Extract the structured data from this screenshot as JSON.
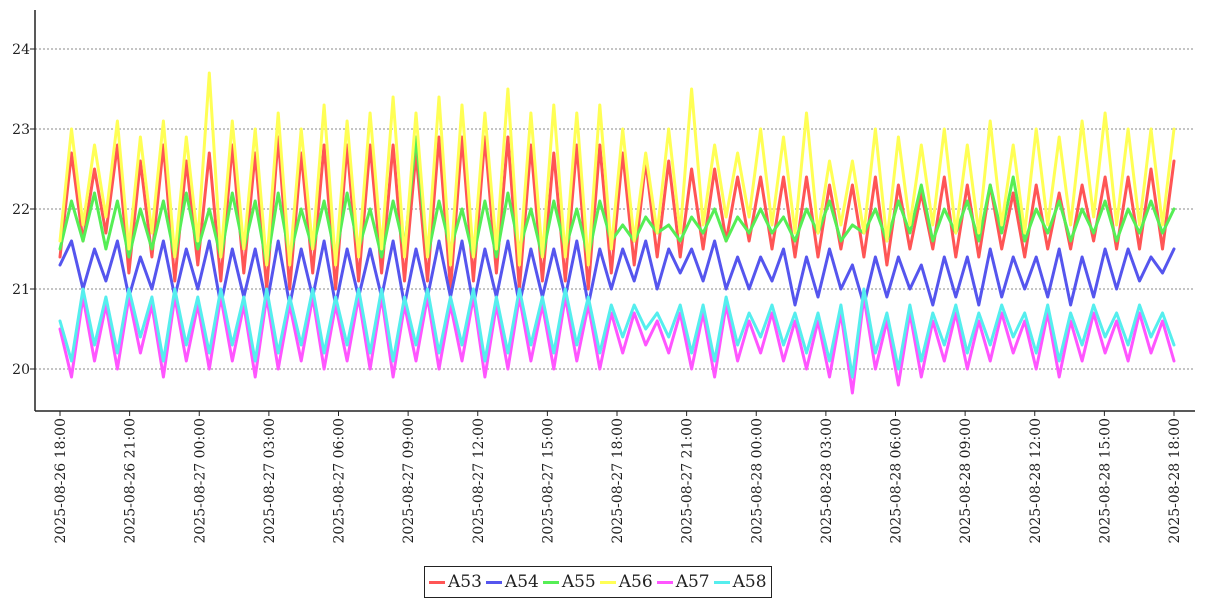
{
  "chart_data": {
    "type": "line",
    "title": "",
    "xlabel": "",
    "ylabel": "",
    "ylim": [
      19.5,
      24.5
    ],
    "y_ticks": [
      "20",
      "21",
      "22",
      "23",
      "24"
    ],
    "grid": "horizontal-dotted",
    "legend_position": "bottom-center",
    "x_ticks": [
      "2025-08-26 18:00",
      "2025-08-26 21:00",
      "2025-08-27 00:00",
      "2025-08-27 03:00",
      "2025-08-27 06:00",
      "2025-08-27 09:00",
      "2025-08-27 12:00",
      "2025-08-27 15:00",
      "2025-08-27 18:00",
      "2025-08-27 21:00",
      "2025-08-28 00:00",
      "2025-08-28 03:00",
      "2025-08-28 06:00",
      "2025-08-28 09:00",
      "2025-08-28 12:00",
      "2025-08-28 15:00",
      "2025-08-28 18:00"
    ],
    "x_hours_span": 48,
    "sample_step_hours": 0.25,
    "series": [
      {
        "name": "A53",
        "color": "#ff5555",
        "values": [
          21.4,
          22.7,
          21.6,
          22.5,
          21.7,
          22.8,
          21.2,
          22.6,
          21.4,
          22.8,
          21.1,
          22.6,
          21.3,
          22.7,
          21.1,
          22.8,
          21.2,
          22.7,
          21.0,
          22.9,
          21.0,
          22.7,
          21.2,
          22.8,
          21.0,
          22.8,
          21.1,
          22.8,
          21.2,
          22.8,
          21.1,
          22.7,
          21.1,
          22.9,
          21.0,
          22.9,
          21.1,
          22.9,
          21.2,
          22.9,
          21.0,
          22.8,
          21.1,
          22.7,
          21.1,
          22.8,
          21.0,
          22.8,
          21.2,
          22.7,
          21.3,
          22.6,
          21.4,
          22.6,
          21.4,
          22.5,
          21.5,
          22.5,
          21.6,
          22.4,
          21.6,
          22.4,
          21.5,
          22.4,
          21.4,
          22.4,
          21.4,
          22.3,
          21.5,
          22.3,
          21.4,
          22.4,
          21.3,
          22.3,
          21.5,
          22.2,
          21.5,
          22.4,
          21.4,
          22.3,
          21.4,
          22.3,
          21.5,
          22.2,
          21.4,
          22.3,
          21.5,
          22.2,
          21.5,
          22.3,
          21.6,
          22.4,
          21.5,
          22.4,
          21.5,
          22.5,
          21.5,
          22.6
        ]
      },
      {
        "name": "A54",
        "color": "#5555ee",
        "values": [
          21.3,
          21.6,
          21.0,
          21.5,
          21.1,
          21.6,
          20.9,
          21.4,
          21.0,
          21.6,
          20.9,
          21.5,
          21.0,
          21.6,
          20.8,
          21.5,
          20.9,
          21.5,
          20.8,
          21.6,
          20.8,
          21.5,
          20.9,
          21.6,
          20.8,
          21.5,
          20.9,
          21.5,
          20.9,
          21.6,
          20.8,
          21.5,
          20.9,
          21.6,
          20.9,
          21.6,
          20.8,
          21.5,
          20.9,
          21.6,
          20.8,
          21.5,
          20.9,
          21.5,
          20.9,
          21.6,
          20.8,
          21.5,
          21.0,
          21.5,
          21.1,
          21.6,
          21.0,
          21.5,
          21.2,
          21.5,
          21.1,
          21.6,
          21.0,
          21.4,
          21.0,
          21.4,
          21.1,
          21.5,
          20.8,
          21.4,
          20.9,
          21.5,
          21.0,
          21.3,
          20.8,
          21.4,
          20.9,
          21.4,
          21.0,
          21.3,
          20.8,
          21.4,
          20.9,
          21.4,
          20.8,
          21.5,
          20.9,
          21.4,
          21.0,
          21.4,
          20.9,
          21.5,
          20.8,
          21.4,
          20.9,
          21.5,
          21.0,
          21.5,
          21.1,
          21.4,
          21.2,
          21.5
        ]
      },
      {
        "name": "A55",
        "color": "#55ee55",
        "values": [
          21.5,
          22.1,
          21.6,
          22.2,
          21.5,
          22.1,
          21.4,
          22.0,
          21.5,
          22.1,
          21.4,
          22.2,
          21.5,
          22.0,
          21.4,
          22.2,
          21.5,
          22.1,
          21.3,
          22.2,
          21.4,
          22.0,
          21.5,
          22.1,
          21.4,
          22.2,
          21.5,
          22.0,
          21.4,
          22.1,
          21.5,
          22.9,
          21.4,
          22.1,
          21.5,
          22.0,
          21.4,
          22.1,
          21.4,
          22.2,
          21.5,
          22.0,
          21.4,
          22.1,
          21.5,
          22.0,
          21.4,
          22.1,
          21.6,
          21.8,
          21.6,
          21.9,
          21.7,
          21.8,
          21.6,
          21.9,
          21.7,
          22.0,
          21.6,
          21.9,
          21.7,
          22.0,
          21.7,
          21.9,
          21.6,
          22.0,
          21.7,
          22.1,
          21.6,
          21.8,
          21.7,
          22.0,
          21.6,
          22.1,
          21.7,
          22.3,
          21.6,
          22.0,
          21.7,
          22.1,
          21.6,
          22.3,
          21.7,
          22.4,
          21.6,
          22.0,
          21.7,
          22.1,
          21.6,
          22.0,
          21.7,
          22.1,
          21.6,
          22.0,
          21.7,
          22.1,
          21.7,
          22.0
        ]
      },
      {
        "name": "A56",
        "color": "#ffff55",
        "values": [
          21.6,
          23.0,
          21.8,
          22.8,
          21.9,
          23.1,
          21.5,
          22.9,
          21.7,
          23.1,
          21.4,
          22.9,
          21.6,
          23.7,
          21.4,
          23.1,
          21.5,
          23.0,
          21.3,
          23.2,
          21.3,
          23.0,
          21.5,
          23.3,
          21.3,
          23.1,
          21.4,
          23.2,
          21.5,
          23.4,
          21.4,
          23.2,
          21.4,
          23.4,
          21.3,
          23.3,
          21.4,
          23.2,
          21.5,
          23.5,
          21.3,
          23.2,
          21.4,
          23.3,
          21.4,
          23.2,
          21.3,
          23.3,
          21.5,
          23.0,
          21.6,
          22.7,
          21.7,
          23.0,
          21.7,
          23.5,
          21.8,
          22.8,
          21.9,
          22.7,
          21.9,
          23.0,
          21.8,
          22.9,
          21.7,
          23.2,
          21.7,
          22.6,
          21.8,
          22.6,
          21.7,
          23.0,
          21.6,
          22.9,
          21.8,
          22.8,
          21.8,
          23.0,
          21.7,
          22.8,
          21.7,
          23.1,
          21.8,
          22.8,
          21.7,
          23.0,
          21.8,
          22.9,
          21.8,
          23.1,
          21.9,
          23.2,
          21.8,
          23.0,
          21.8,
          23.0,
          21.8,
          23.0
        ]
      },
      {
        "name": "A57",
        "color": "#ff55ff",
        "values": [
          20.5,
          19.9,
          20.9,
          20.1,
          20.8,
          20.0,
          20.9,
          20.2,
          20.8,
          19.9,
          20.9,
          20.1,
          20.8,
          20.0,
          20.9,
          20.1,
          20.8,
          19.9,
          20.9,
          20.0,
          20.8,
          20.1,
          20.9,
          20.0,
          20.8,
          20.1,
          20.9,
          20.0,
          20.9,
          19.9,
          20.8,
          20.1,
          20.9,
          20.0,
          20.8,
          20.1,
          20.9,
          19.9,
          20.8,
          20.0,
          20.9,
          20.1,
          20.8,
          20.0,
          20.9,
          20.1,
          20.8,
          20.0,
          20.7,
          20.2,
          20.7,
          20.3,
          20.6,
          20.2,
          20.7,
          20.0,
          20.7,
          19.9,
          20.8,
          20.1,
          20.6,
          20.2,
          20.7,
          20.1,
          20.6,
          20.0,
          20.6,
          19.9,
          20.7,
          19.7,
          20.9,
          20.0,
          20.6,
          19.8,
          20.7,
          19.9,
          20.6,
          20.1,
          20.7,
          20.0,
          20.6,
          20.1,
          20.7,
          20.2,
          20.6,
          20.0,
          20.7,
          19.9,
          20.6,
          20.1,
          20.7,
          20.2,
          20.6,
          20.1,
          20.7,
          20.2,
          20.6,
          20.1
        ]
      },
      {
        "name": "A58",
        "color": "#55eeee",
        "values": [
          20.6,
          20.1,
          21.0,
          20.3,
          20.9,
          20.2,
          21.0,
          20.4,
          20.9,
          20.1,
          21.0,
          20.3,
          20.9,
          20.2,
          21.0,
          20.3,
          20.9,
          20.1,
          21.0,
          20.2,
          20.9,
          20.3,
          21.0,
          20.2,
          20.9,
          20.3,
          21.0,
          20.2,
          21.0,
          20.1,
          20.9,
          20.3,
          21.0,
          20.2,
          20.9,
          20.3,
          21.0,
          20.1,
          20.9,
          20.2,
          21.0,
          20.3,
          20.9,
          20.2,
          21.0,
          20.3,
          20.9,
          20.2,
          20.8,
          20.4,
          20.8,
          20.5,
          20.7,
          20.4,
          20.8,
          20.2,
          20.8,
          20.1,
          20.9,
          20.3,
          20.7,
          20.4,
          20.8,
          20.3,
          20.7,
          20.2,
          20.7,
          20.1,
          20.8,
          19.9,
          21.0,
          20.2,
          20.7,
          20.0,
          20.8,
          20.1,
          20.7,
          20.3,
          20.8,
          20.2,
          20.7,
          20.3,
          20.8,
          20.4,
          20.7,
          20.2,
          20.8,
          20.1,
          20.7,
          20.3,
          20.8,
          20.4,
          20.7,
          20.3,
          20.8,
          20.4,
          20.7,
          20.3
        ]
      }
    ]
  }
}
